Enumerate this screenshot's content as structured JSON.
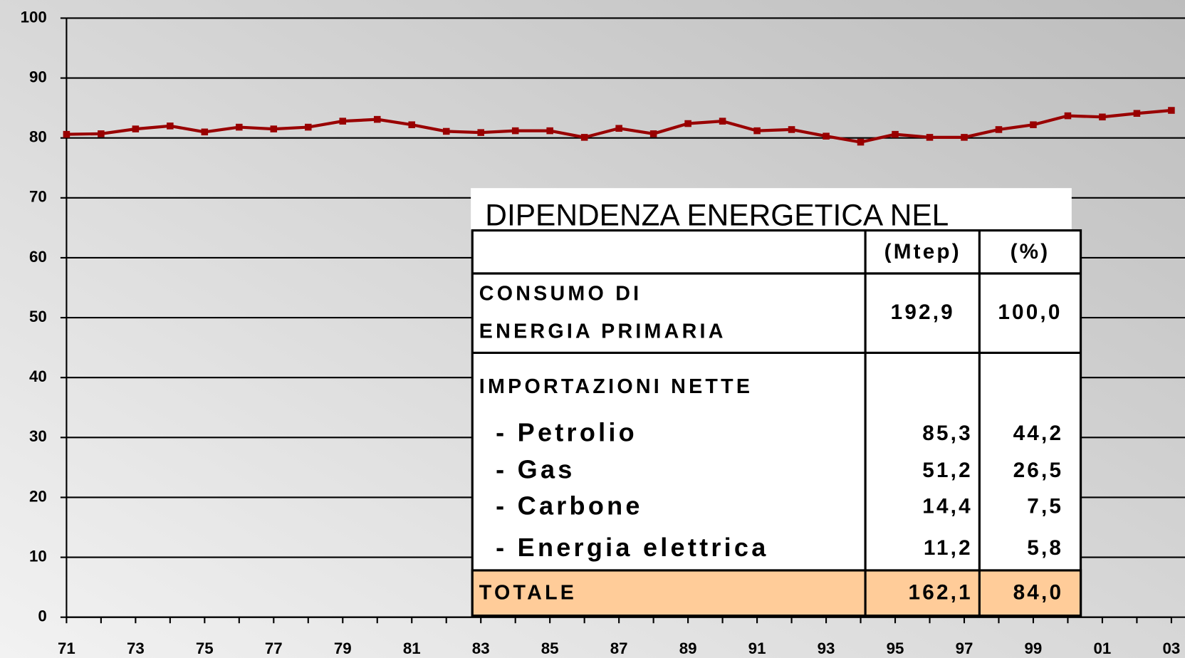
{
  "chart_data": {
    "type": "line",
    "categories": [
      "71",
      null,
      "73",
      null,
      "75",
      null,
      "77",
      null,
      "79",
      null,
      "81",
      null,
      "83",
      null,
      "85",
      null,
      "87",
      null,
      "89",
      null,
      "91",
      null,
      "93",
      null,
      "95",
      null,
      "97",
      null,
      "99",
      null,
      "01",
      null,
      "03"
    ],
    "values": [
      80.6,
      80.7,
      81.5,
      82.0,
      81.0,
      81.8,
      81.5,
      81.8,
      82.8,
      83.1,
      82.2,
      81.1,
      80.9,
      81.2,
      81.2,
      80.1,
      81.6,
      80.7,
      82.4,
      82.8,
      81.2,
      81.4,
      80.3,
      79.3,
      80.6,
      80.1,
      80.1,
      81.4,
      82.2,
      83.7,
      83.5,
      84.1,
      84.6
    ],
    "color": "#990000",
    "ylim": [
      0,
      100
    ],
    "yticks": [
      0,
      10,
      20,
      30,
      40,
      50,
      60,
      70,
      80,
      90,
      100
    ],
    "grid": true
  },
  "table": {
    "title": "DIPENDENZA ENERGETICA NEL",
    "header": [
      "(Mtep)",
      "(%)"
    ],
    "consumo": {
      "lines": [
        "CONSUMO DI",
        "ENERGIA PRIMARIA"
      ],
      "mtep": "192,9",
      "pct": "100,0"
    },
    "imports": {
      "label": "IMPORTAZIONI NETTE",
      "items": [
        {
          "label": "- Petrolio",
          "mtep": "85,3",
          "pct": "44,2"
        },
        {
          "label": "- Gas",
          "mtep": "51,2",
          "pct": "26,5"
        },
        {
          "label": "- Carbone",
          "mtep": "14,4",
          "pct": "7,5"
        },
        {
          "label": "- Energia elettrica",
          "mtep": "11,2",
          "pct": "5,8"
        }
      ]
    },
    "total": {
      "label": "TOTALE",
      "mtep": "162,1",
      "pct": "84,0"
    }
  }
}
